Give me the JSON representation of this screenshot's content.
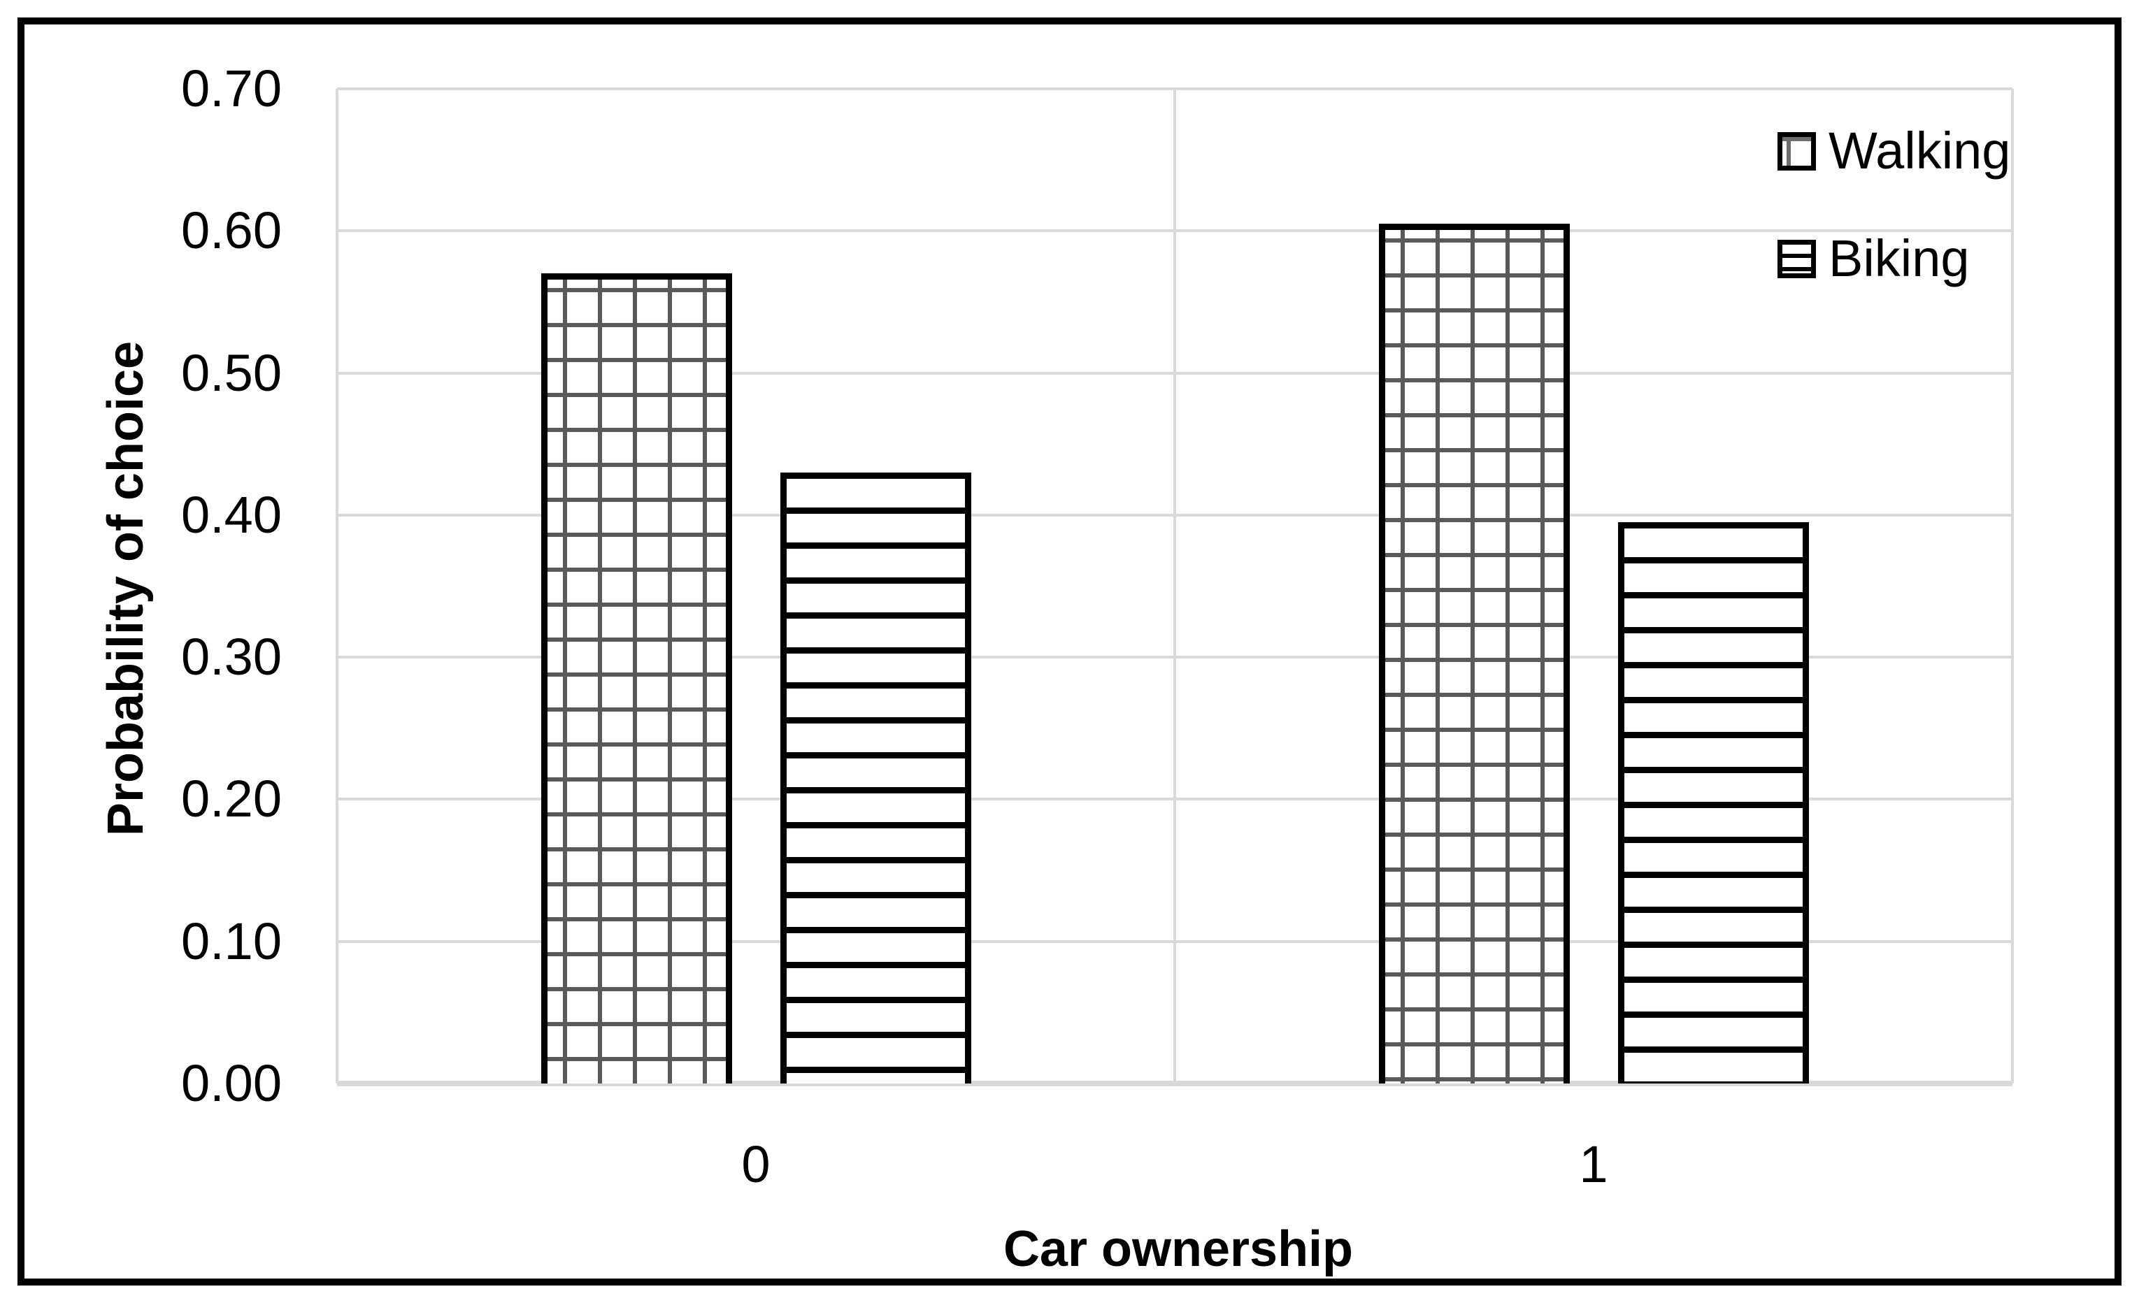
{
  "figure": {
    "background": "#ffffff",
    "border_color": "#000000"
  },
  "chart_data": {
    "type": "bar",
    "title": "",
    "xlabel": "Car ownership",
    "ylabel": "Probability of choice",
    "categories": [
      "0",
      "1"
    ],
    "series": [
      {
        "name": "Walking",
        "pattern": "grid",
        "values": [
          0.57,
          0.605
        ]
      },
      {
        "name": "Biking",
        "pattern": "horizontal-lines",
        "values": [
          0.43,
          0.395
        ]
      }
    ],
    "ylim": [
      0.0,
      0.7
    ],
    "ytick_step": 0.1,
    "ytick_labels": [
      "0.00",
      "0.10",
      "0.20",
      "0.30",
      "0.40",
      "0.50",
      "0.60",
      "0.70"
    ],
    "grid": "horizontal-and-vertical-edges",
    "legend_position": "top-right",
    "colors": {
      "gridline": "#d9d9d9",
      "grid_pattern_line": "#595959",
      "hline_pattern_line": "#000000",
      "bar_border": "#000000",
      "text": "#000000"
    }
  }
}
